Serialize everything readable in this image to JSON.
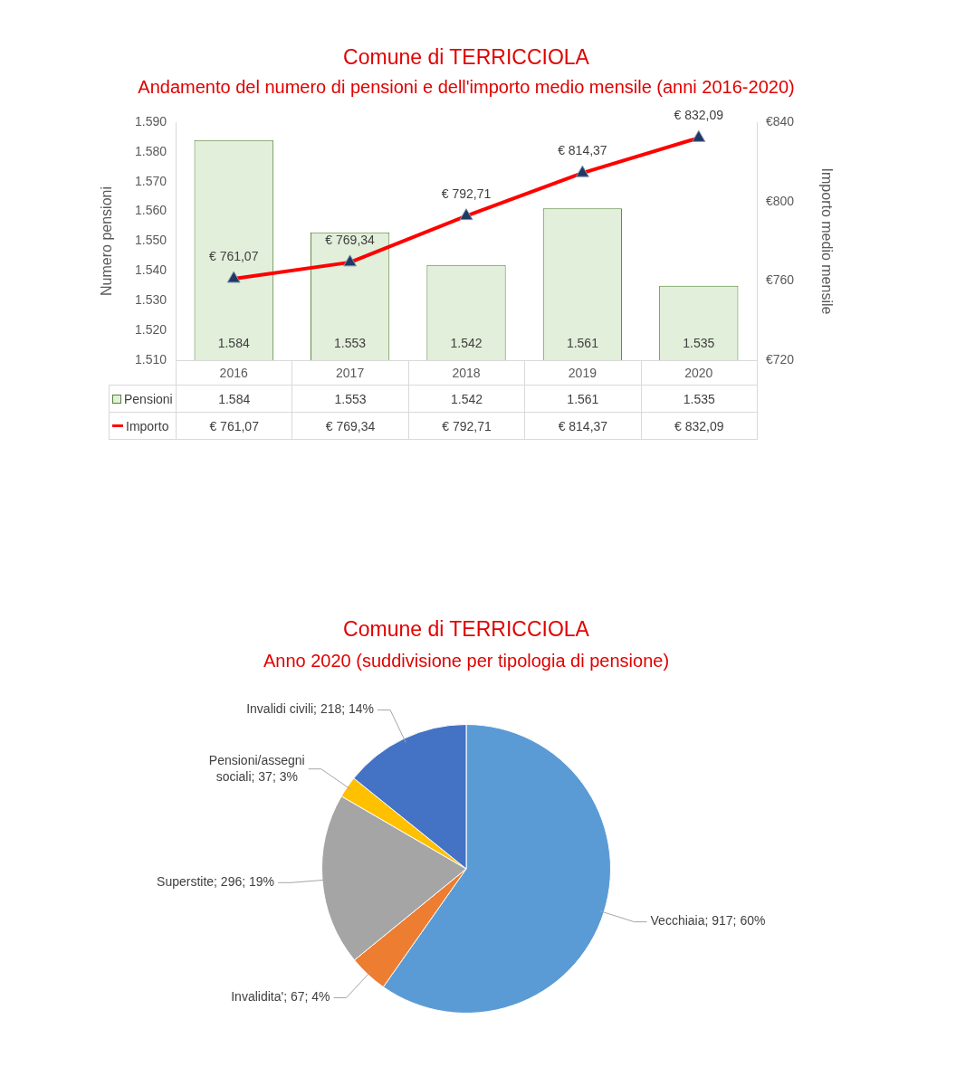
{
  "chart_data": [
    {
      "type": "bar",
      "title": "Comune di TERRICCIOLA",
      "subtitle": "Andamento del numero di pensioni e dell'importo medio mensile (anni 2016-2020)",
      "ylabel": "Numero pensioni",
      "y2label": "Importo medio mensile",
      "categories": [
        "2016",
        "2017",
        "2018",
        "2019",
        "2020"
      ],
      "series": [
        {
          "name": "Pensioni",
          "type": "bar",
          "color": "#e2efda",
          "values": [
            1584,
            1553,
            1542,
            1561,
            1535
          ],
          "value_labels": [
            "1.584",
            "1.553",
            "1.542",
            "1.561",
            "1.535"
          ]
        },
        {
          "name": "Importo",
          "type": "line",
          "axis": "y2",
          "color": "#ff0000",
          "marker": "triangle",
          "values": [
            761.07,
            769.34,
            792.71,
            814.37,
            832.09
          ],
          "value_labels": [
            "€ 761,07",
            "€ 769,34",
            "€ 792,71",
            "€ 814,37",
            "€ 832,09"
          ]
        }
      ],
      "ylim": [
        1510,
        1590
      ],
      "yticks": [
        {
          "value": 1510,
          "label": "1.510"
        },
        {
          "value": 1520,
          "label": "1.520"
        },
        {
          "value": 1530,
          "label": "1.530"
        },
        {
          "value": 1540,
          "label": "1.540"
        },
        {
          "value": 1550,
          "label": "1.550"
        },
        {
          "value": 1560,
          "label": "1.560"
        },
        {
          "value": 1570,
          "label": "1.570"
        },
        {
          "value": 1580,
          "label": "1.580"
        },
        {
          "value": 1590,
          "label": "1.590"
        }
      ],
      "y2lim": [
        720,
        840
      ],
      "y2ticks": [
        {
          "value": 720,
          "label": "€720"
        },
        {
          "value": 760,
          "label": "€760"
        },
        {
          "value": 800,
          "label": "€800"
        },
        {
          "value": 840,
          "label": "€840"
        }
      ],
      "grid": false,
      "legend": "bottom left"
    },
    {
      "type": "pie",
      "title": "Comune di TERRICCIOLA",
      "subtitle": "Anno 2020 (suddivisione per tipologia di pensione)",
      "categories": [
        "Vecchiaia",
        "Invalidita'",
        "Superstite",
        "Pensioni/assegni sociali",
        "Invalidi civili"
      ],
      "values": [
        917,
        67,
        296,
        37,
        218
      ],
      "colors": [
        "#5b9bd5",
        "#ed7d31",
        "#a5a5a5",
        "#ffc000",
        "#4472c4"
      ],
      "value_labels": [
        "917; 60%",
        "67; 4%",
        "296; 19%",
        "37; 3%",
        "218; 14%"
      ],
      "legend": false
    }
  ]
}
